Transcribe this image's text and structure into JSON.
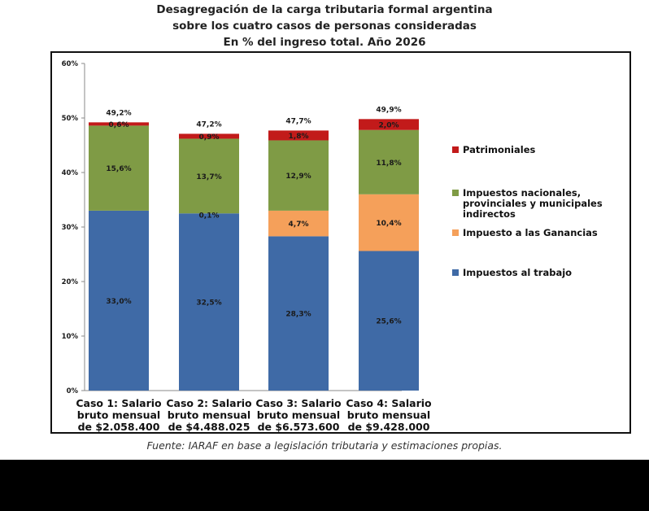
{
  "title_lines": [
    "Desagregación de la carga tributaria formal argentina",
    "sobre los cuatro casos de personas consideradas",
    "En % del ingreso total. Año 2026"
  ],
  "source": "Fuente: IARAF en base a legislación tributaria y estimaciones propias.",
  "colors": {
    "trabajo": "#3F6AA6",
    "ganancias": "#F5A05A",
    "indirectos": "#7F9B45",
    "patrimoniales": "#C21A1A"
  },
  "chart_data": {
    "type": "bar",
    "stacked": true,
    "title": "Desagregación de la carga tributaria formal argentina sobre los cuatro casos de personas consideradas En % del ingreso total. Año 2026",
    "categories": [
      [
        "Caso 1: Salario",
        "bruto mensual",
        "de $2.058.400"
      ],
      [
        "Caso 2: Salario",
        "bruto mensual",
        "de $4.488.025"
      ],
      [
        "Caso 3: Salario",
        "bruto mensual",
        "de $6.573.600"
      ],
      [
        "Caso 4: Salario",
        "bruto mensual",
        "de $9.428.000"
      ]
    ],
    "series": [
      {
        "name": "Impuestos al trabajo",
        "key": "trabajo",
        "values": [
          33.0,
          32.5,
          28.3,
          25.6
        ],
        "labels": [
          "33,0%",
          "32,5%",
          "28,3%",
          "25,6%"
        ]
      },
      {
        "name": "Impuesto a las Ganancias",
        "key": "ganancias",
        "values": [
          0,
          0,
          4.7,
          10.4
        ],
        "labels": [
          "",
          "",
          "4,7%",
          "10,4%"
        ]
      },
      {
        "name": "Impuestos nacionales, provinciales y municipales indirectos",
        "key": "indirectos",
        "values": [
          15.6,
          13.7,
          12.9,
          11.8
        ],
        "labels": [
          "15,6%",
          "13,7%",
          "12,9%",
          "11,8%"
        ]
      },
      {
        "name": "Patrimoniales",
        "key": "patrimoniales",
        "values": [
          0.6,
          0.9,
          1.8,
          2.0
        ],
        "labels": [
          "0,6%",
          "0,9%",
          "1,8%",
          "2,0%"
        ]
      }
    ],
    "extra_labels": [
      {
        "bar": 1,
        "text": "0,1%",
        "note": "label drawn at top of Impuestos al trabajo segment"
      }
    ],
    "totals": [
      "49,2%",
      "47,2%",
      "47,7%",
      "49,9%"
    ],
    "ylim": [
      0,
      60
    ],
    "yticks": [
      "0%",
      "10%",
      "20%",
      "30%",
      "40%",
      "50%",
      "60%"
    ],
    "grid": false,
    "legend_position": "right",
    "legend": [
      {
        "key": "patrimoniales",
        "lines": [
          "Patrimoniales"
        ]
      },
      {
        "key": "indirectos",
        "lines": [
          "Impuestos nacionales,",
          "provinciales y municipales",
          "indirectos"
        ]
      },
      {
        "key": "ganancias",
        "lines": [
          "Impuesto a las Ganancias"
        ]
      },
      {
        "key": "trabajo",
        "lines": [
          "Impuestos al trabajo"
        ]
      }
    ]
  }
}
